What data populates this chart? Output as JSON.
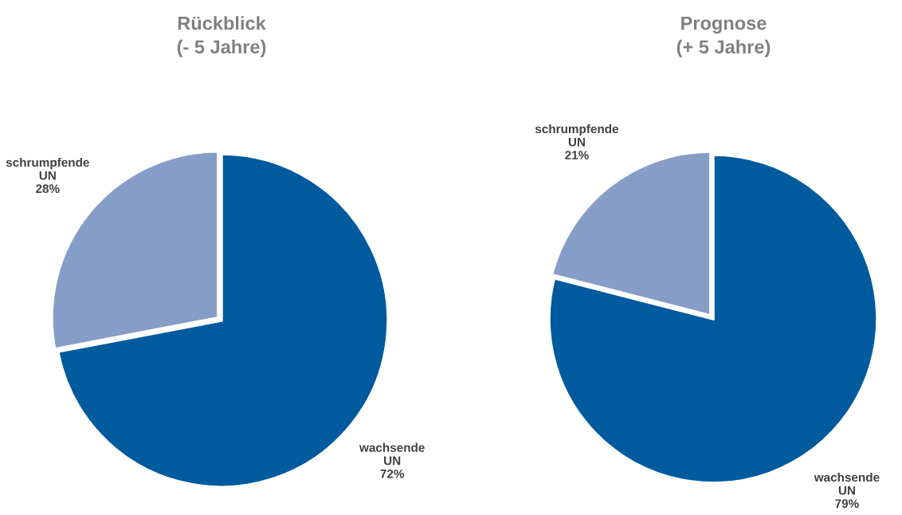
{
  "chart_data": [
    {
      "type": "pie",
      "title": "Rückblick\n(- 5 Jahre)",
      "categories": [
        "wachsende\nUN",
        "schrumpfende\nUN"
      ],
      "values": [
        72,
        28
      ],
      "colors": [
        "#005a9e",
        "#869dc7"
      ],
      "value_labels": [
        "72%",
        "28%"
      ]
    },
    {
      "type": "pie",
      "title": "Prognose\n(+ 5 Jahre)",
      "categories": [
        "wachsende\nUN",
        "schrumpfende\nUN"
      ],
      "values": [
        79,
        21
      ],
      "colors": [
        "#005a9e",
        "#869dc7"
      ],
      "value_labels": [
        "79%",
        "21%"
      ]
    }
  ]
}
